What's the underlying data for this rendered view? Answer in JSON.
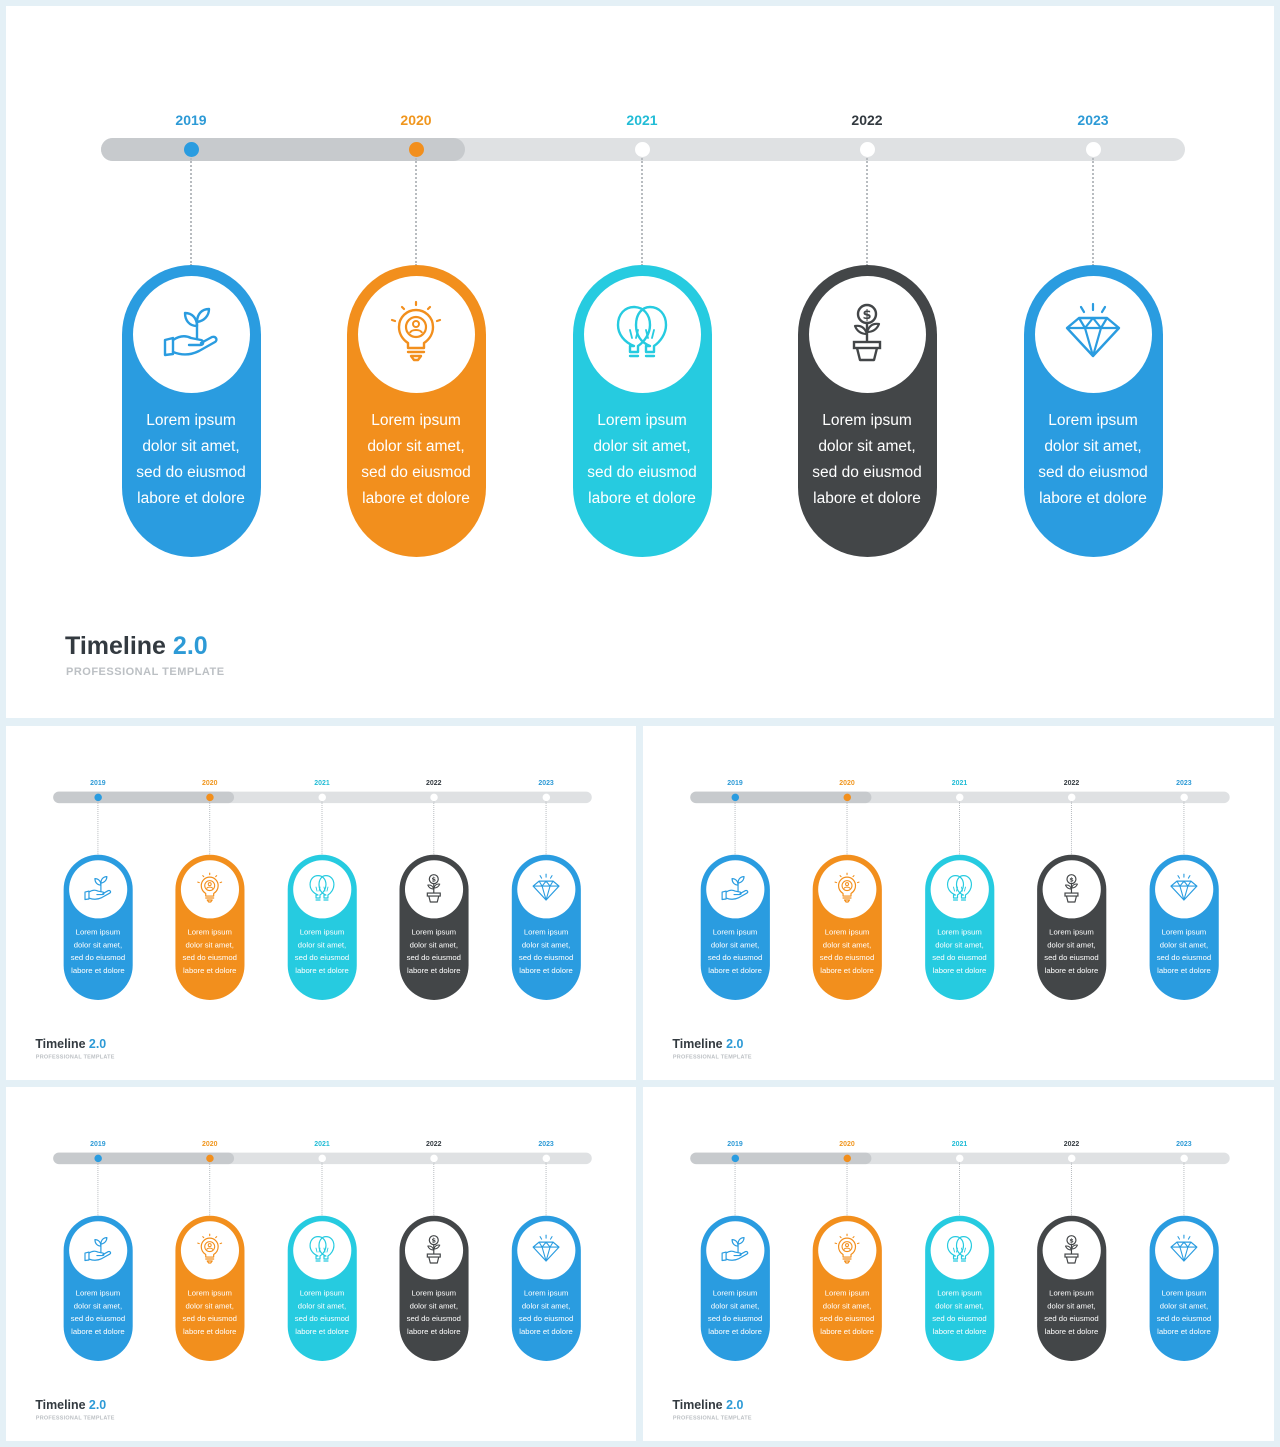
{
  "deck": {
    "title_main": "Timeline",
    "title_version": "2.0",
    "subtitle": "PROFESSIONAL TEMPLATE"
  },
  "colors": {
    "blue": "#2a9ce0",
    "orange": "#f28f1d",
    "cyan": "#26cbe0",
    "dark": "#434648",
    "track": "#dfe1e3",
    "track_progress": "#c7cacd"
  },
  "milestones": [
    {
      "year": "2019",
      "year_color": "#2d9ad6",
      "color": "#2a9ce0",
      "icon": "hand-plant-icon",
      "completed": true,
      "text": [
        "Lorem ipsum",
        "dolor sit amet,",
        "sed do eiusmod",
        "labore et dolore"
      ]
    },
    {
      "year": "2020",
      "year_color": "#f0961e",
      "color": "#f28f1d",
      "icon": "lightbulb-person-icon",
      "completed": true,
      "text": [
        "Lorem ipsum",
        "dolor sit amet,",
        "sed do eiusmod",
        "labore et dolore"
      ]
    },
    {
      "year": "2021",
      "year_color": "#22bcd6",
      "color": "#26cbe0",
      "icon": "twin-bulbs-icon",
      "completed": false,
      "text": [
        "Lorem ipsum",
        "dolor sit amet,",
        "sed do eiusmod",
        "labore et dolore"
      ]
    },
    {
      "year": "2022",
      "year_color": "#333a40",
      "color": "#434648",
      "icon": "money-plant-icon",
      "completed": false,
      "text": [
        "Lorem ipsum",
        "dolor sit amet,",
        "sed do eiusmod",
        "labore et dolore"
      ]
    },
    {
      "year": "2023",
      "year_color": "#2d9ad6",
      "color": "#2a9ce0",
      "icon": "diamond-icon",
      "completed": false,
      "text": [
        "Lorem ipsum",
        "dolor sit amet,",
        "sed do eiusmod",
        "labore et dolore"
      ]
    }
  ],
  "progress_fraction": 0.336
}
